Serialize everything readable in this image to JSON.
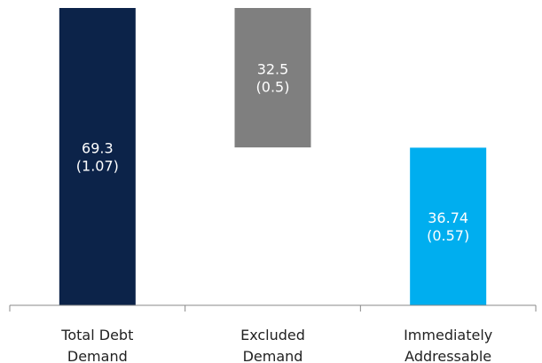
{
  "chart_data": {
    "type": "bar",
    "subtype": "waterfall",
    "categories": [
      [
        "Total Debt",
        "Demand"
      ],
      [
        "Excluded",
        "Demand"
      ],
      [
        "Immediately",
        "Addressable"
      ]
    ],
    "bars": [
      {
        "start": 0,
        "end": 69.3,
        "label_lines": [
          "69.3",
          "(1.07)"
        ],
        "color": "#0c2349"
      },
      {
        "start": 36.8,
        "end": 69.3,
        "label_lines": [
          "32.5",
          "(0.5)"
        ],
        "color": "#7f7f7f"
      },
      {
        "start": 0,
        "end": 36.74,
        "label_lines": [
          "36.74",
          "(0.57)"
        ],
        "color": "#00aeef"
      }
    ],
    "title": "",
    "xlabel": "",
    "ylabel": "",
    "ylim": [
      0,
      69.3
    ],
    "grid": false,
    "legend": "none"
  }
}
